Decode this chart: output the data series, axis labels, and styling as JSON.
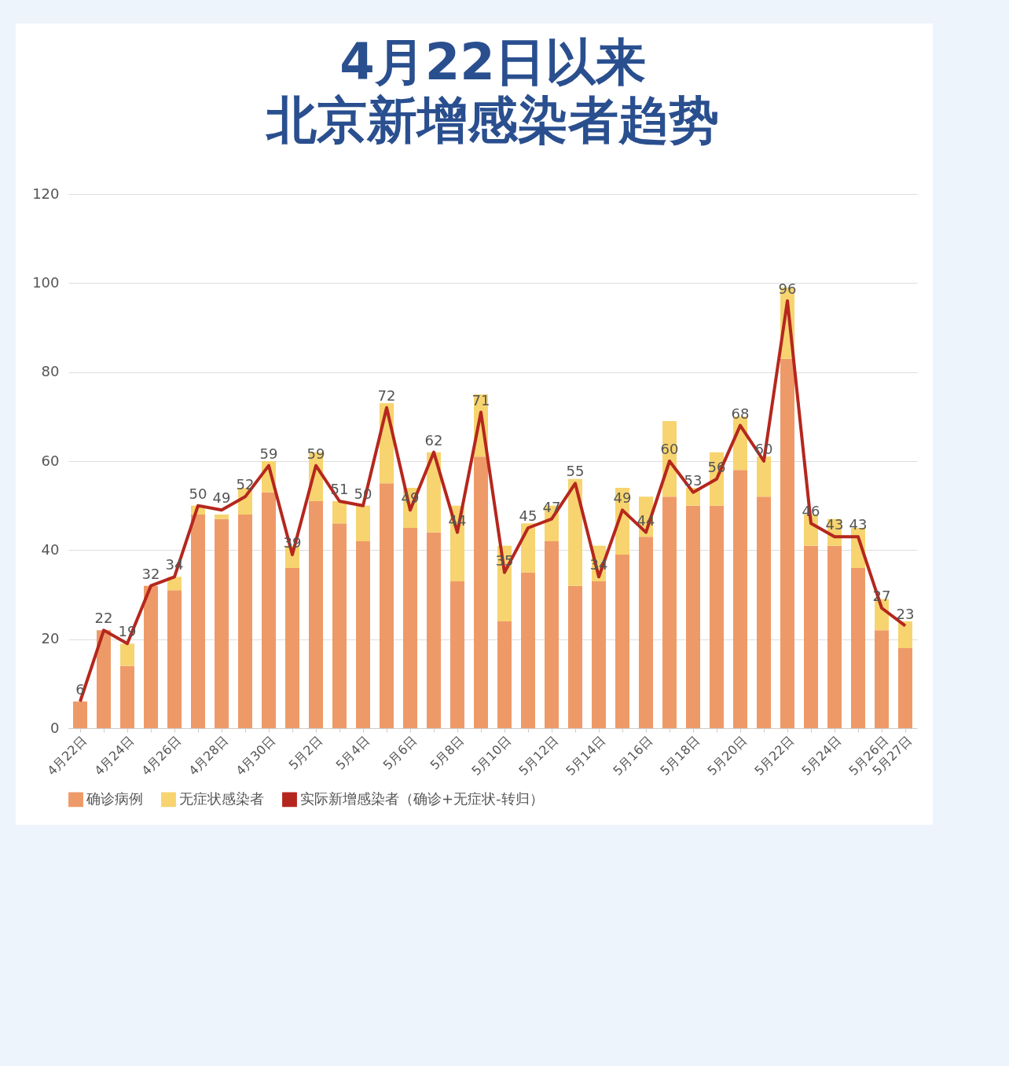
{
  "chart_data": {
    "type": "bar",
    "title": "4月22日以来",
    "subtitle": "北京新增感染者趋势",
    "categories": [
      "4月22日",
      null,
      "4月24日",
      null,
      "4月26日",
      null,
      "4月28日",
      null,
      "4月30日",
      null,
      "5月2日",
      null,
      "5月4日",
      null,
      "5月6日",
      null,
      "5月8日",
      null,
      "5月10日",
      null,
      "5月12日",
      null,
      "5月14日",
      null,
      "5月16日",
      null,
      "5月18日",
      null,
      "5月20日",
      null,
      "5月22日",
      null,
      "5月24日",
      null,
      "5月26日",
      "5月27日"
    ],
    "stacked": true,
    "series": [
      {
        "name": "确诊病例",
        "color": "#ee9a68",
        "values": [
          6,
          22,
          14,
          32,
          31,
          48,
          47,
          48,
          53,
          36,
          51,
          46,
          42,
          55,
          45,
          44,
          33,
          61,
          24,
          35,
          42,
          32,
          33,
          39,
          43,
          52,
          50,
          50,
          58,
          52,
          83,
          41,
          41,
          36,
          22,
          18
        ]
      },
      {
        "name": "无症状感染者",
        "color": "#f7d46f",
        "values": [
          0,
          0,
          5,
          0,
          3,
          2,
          1,
          6,
          7,
          5,
          11,
          5,
          8,
          18,
          9,
          18,
          17,
          14,
          17,
          11,
          8,
          24,
          8,
          15,
          9,
          17,
          4,
          12,
          12,
          9,
          16,
          7,
          6,
          9,
          7,
          6
        ]
      },
      {
        "name": "实际新增感染者（确诊+无症状-转归）",
        "type": "line",
        "color": "#b5271e",
        "data_labels": true,
        "values": [
          6,
          22,
          19,
          32,
          34,
          50,
          49,
          52,
          59,
          39,
          59,
          51,
          50,
          72,
          49,
          62,
          44,
          71,
          35,
          45,
          47,
          55,
          34,
          49,
          44,
          60,
          53,
          56,
          68,
          60,
          96,
          46,
          43,
          43,
          27,
          23
        ]
      }
    ],
    "ylim": [
      0,
      120
    ],
    "yticks": [
      0,
      20,
      40,
      60,
      80,
      100,
      120
    ],
    "grid": "y",
    "legend": "bottom"
  }
}
